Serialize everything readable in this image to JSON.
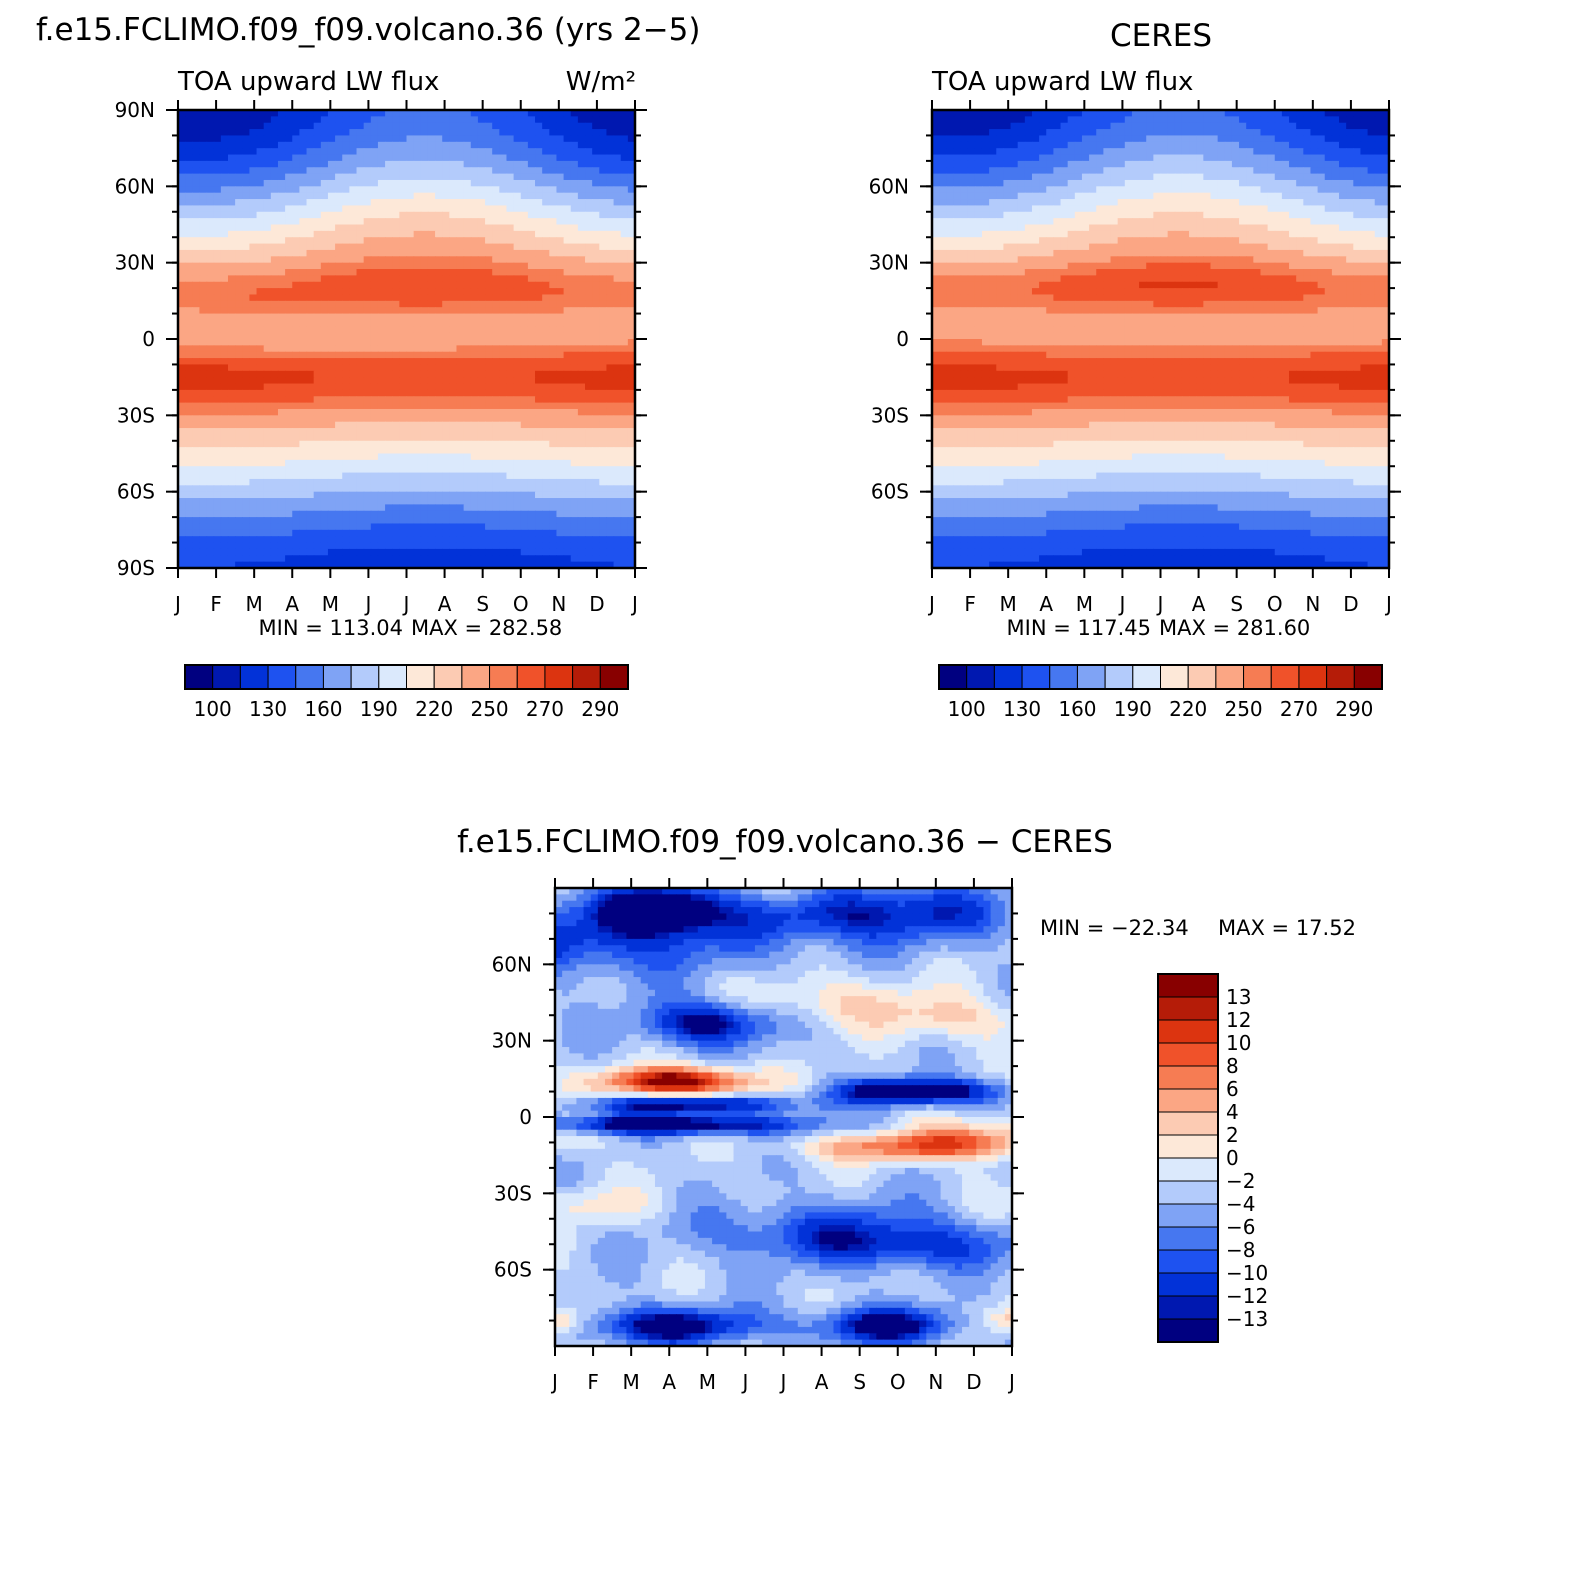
{
  "colors": {
    "abs_levels": [
      "#000080",
      "#0018b0",
      "#0232d8",
      "#1e52f0",
      "#4677f0",
      "#7fa3f5",
      "#b3cbfb",
      "#dbe9fc",
      "#fde8d8",
      "#fccbb3",
      "#fba684",
      "#f67c53",
      "#f0522a",
      "#dc3410",
      "#b51c08",
      "#880000"
    ],
    "diff_levels": [
      "#000080",
      "#0018b0",
      "#0232d8",
      "#1e52f0",
      "#4677f0",
      "#7fa3f5",
      "#b3cbfb",
      "#dbe9fc",
      "#fde8d8",
      "#fccbb3",
      "#fba684",
      "#f67c53",
      "#f0522a",
      "#dc3410",
      "#b51c08",
      "#880000"
    ]
  },
  "chart_data": [
    {
      "type": "heatmap",
      "title": "f.e15.FCLIMO.f09_f09.volcano.36 (yrs 2−5)",
      "left_subtitle": "TOA upward LW flux",
      "right_subtitle": "W/m²",
      "x_tick_labels": [
        "J",
        "F",
        "M",
        "A",
        "M",
        "J",
        "J",
        "A",
        "S",
        "O",
        "N",
        "D",
        "J"
      ],
      "y_tick_labels": [
        "90N",
        "60N",
        "30N",
        "0",
        "30S",
        "60S",
        "90S"
      ],
      "ylim": [
        -90,
        90
      ],
      "min_label": "MIN = 113.04",
      "max_label": "MAX = 282.58",
      "stats": {
        "min": 113.04,
        "max": 282.58
      },
      "colorbar_labels": [
        "100",
        "130",
        "160",
        "190",
        "220",
        "250",
        "270",
        "290"
      ],
      "colorbar_levels": [
        100,
        115,
        130,
        145,
        160,
        175,
        190,
        205,
        220,
        235,
        250,
        260,
        270,
        280,
        290
      ],
      "model": "model"
    },
    {
      "type": "heatmap",
      "title": "CERES",
      "left_subtitle": "TOA upward LW flux",
      "x_tick_labels": [
        "J",
        "F",
        "M",
        "A",
        "M",
        "J",
        "J",
        "A",
        "S",
        "O",
        "N",
        "D",
        "J"
      ],
      "y_tick_labels": [
        "60N",
        "30N",
        "0",
        "30S",
        "60S"
      ],
      "ylim": [
        -90,
        90
      ],
      "min_label": "MIN = 117.45",
      "max_label": "MAX = 281.60",
      "stats": {
        "min": 117.45,
        "max": 281.6
      },
      "colorbar_labels": [
        "100",
        "130",
        "160",
        "190",
        "220",
        "250",
        "270",
        "290"
      ],
      "colorbar_levels": [
        100,
        115,
        130,
        145,
        160,
        175,
        190,
        205,
        220,
        235,
        250,
        260,
        270,
        280,
        290
      ],
      "model": "obs"
    },
    {
      "type": "heatmap",
      "title": "f.e15.FCLIMO.f09_f09.volcano.36 − CERES",
      "x_tick_labels": [
        "J",
        "F",
        "M",
        "A",
        "M",
        "J",
        "J",
        "A",
        "S",
        "O",
        "N",
        "D",
        "J"
      ],
      "y_tick_labels": [
        "60N",
        "30N",
        "0",
        "30S",
        "60S"
      ],
      "ylim": [
        -90,
        90
      ],
      "min_label": "MIN = −22.34",
      "max_label": "MAX =   17.52",
      "stats": {
        "min": -22.34,
        "max": 17.52
      },
      "colorbar_labels": [
        "13",
        "12",
        "10",
        "8",
        "6",
        "4",
        "2",
        "0",
        "−2",
        "−4",
        "−6",
        "−8",
        "−10",
        "−12",
        "−13"
      ],
      "colorbar_levels": [
        -13,
        -12,
        -10,
        -8,
        -6,
        -4,
        -2,
        0,
        2,
        4,
        6,
        8,
        10,
        12,
        13
      ],
      "model": "diff"
    }
  ]
}
